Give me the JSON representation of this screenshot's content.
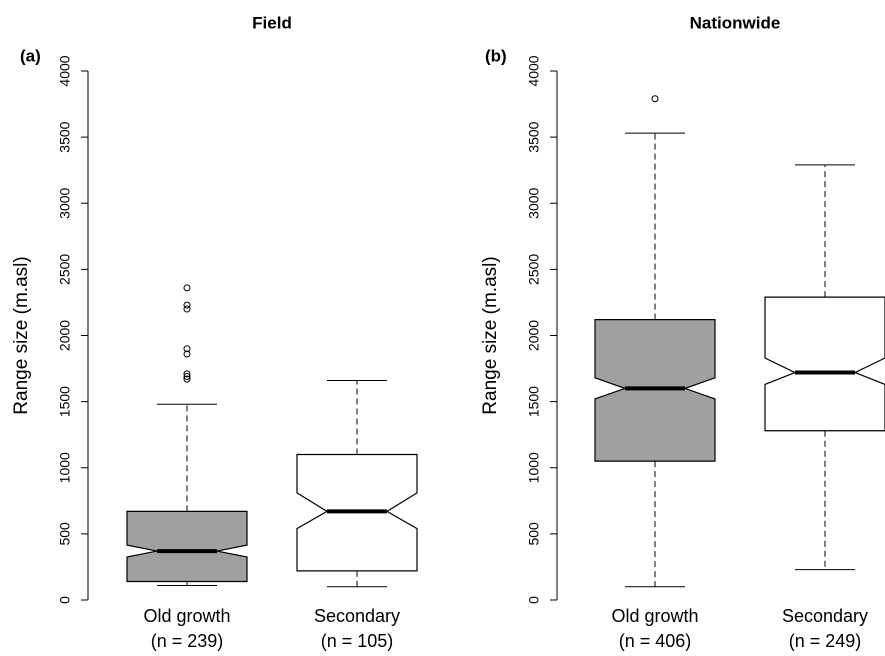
{
  "chart_data": [
    {
      "type": "boxplot",
      "title": "Field",
      "panel_label": "(a)",
      "ylabel": "Range size (m.asl)",
      "categories": [
        "Old growth",
        "Secondary"
      ],
      "sublabels": [
        "(n = 239)",
        "(n = 105)"
      ],
      "colors": [
        "#a0a0a0",
        "#ffffff"
      ],
      "boxes": [
        {
          "whisker_low": 110,
          "q1": 140,
          "median": 370,
          "q3": 670,
          "whisker_high": 1480,
          "notch": [
            325,
            415
          ],
          "outliers": [
            2360,
            2230,
            2200,
            1900,
            1860,
            1710,
            1690,
            1670
          ]
        },
        {
          "whisker_low": 100,
          "q1": 220,
          "median": 670,
          "q3": 1100,
          "whisker_high": 1660,
          "notch": [
            540,
            810
          ],
          "outliers": []
        }
      ],
      "ylim": [
        0,
        4000
      ],
      "yticks": [
        0,
        500,
        1000,
        1500,
        2000,
        2500,
        3000,
        3500,
        4000
      ]
    },
    {
      "type": "boxplot",
      "title": "Nationwide",
      "panel_label": "(b)",
      "ylabel": "Range size (m.asl)",
      "categories": [
        "Old growth",
        "Secondary"
      ],
      "sublabels": [
        "(n = 406)",
        "(n = 249)"
      ],
      "colors": [
        "#a0a0a0",
        "#ffffff"
      ],
      "boxes": [
        {
          "whisker_low": 100,
          "q1": 1050,
          "median": 1600,
          "q3": 2120,
          "whisker_high": 3530,
          "notch": [
            1520,
            1680
          ],
          "outliers": [
            3790
          ]
        },
        {
          "whisker_low": 230,
          "q1": 1280,
          "median": 1720,
          "q3": 2290,
          "whisker_high": 3290,
          "notch": [
            1630,
            1830
          ],
          "outliers": []
        }
      ],
      "ylim": [
        0,
        4000
      ],
      "yticks": [
        0,
        500,
        1000,
        1500,
        2000,
        2500,
        3000,
        3500,
        4000
      ]
    }
  ]
}
